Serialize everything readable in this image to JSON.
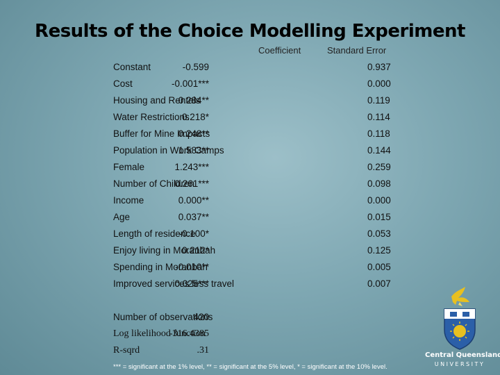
{
  "title": "Results of the Choice Modelling Experiment",
  "headers": {
    "coefficient": "Coefficient",
    "std_error": "Standard Error"
  },
  "rows": [
    {
      "label": "Constant",
      "coef": "-0.599",
      "se": "0.937"
    },
    {
      "label": "Cost",
      "coef": "-0.001***",
      "se": "0.000"
    },
    {
      "label": "Housing and Rentals",
      "coef": "0.284**",
      "se": "0.119"
    },
    {
      "label": "Water Restrictions",
      "coef": "0.218*",
      "se": "0.114"
    },
    {
      "label": "Buffer for Mine Impacts",
      "coef": "0.248**",
      "se": "0.118"
    },
    {
      "label": "Population in Work Camps",
      "coef": "1.583**",
      "se": "0.144"
    },
    {
      "label": "Female",
      "coef": "1.243***",
      "se": "0.259"
    },
    {
      "label": "Number of Children",
      "coef": "0.261***",
      "se": "0.098"
    },
    {
      "label": "Income",
      "coef": "0.000**",
      "se": "0.000"
    },
    {
      "label": "Age",
      "coef": "0.037**",
      "se": "0.015"
    },
    {
      "label": "Length of residence",
      "coef": "-0.100*",
      "se": "0.053"
    },
    {
      "label": "Enjoy living in Moranbah",
      "coef": "0.212*",
      "se": "0.125"
    },
    {
      "label": "Spending in Moranbah",
      "coef": "-0.010**",
      "se": "0.005"
    },
    {
      "label": "Improved services less travel",
      "coef": "0.025***",
      "se": "0.007"
    }
  ],
  "stats": [
    {
      "label": "Number of observations",
      "value": "420"
    },
    {
      "label": "Log likelihood function",
      "value": "-316.4385"
    },
    {
      "label": "R-sqrd",
      "value": ".31"
    }
  ],
  "footnote": "*** = significant at the 1% level, ** = significant at the 5% level, * = significant at the 10% level.",
  "logo": {
    "name_line1": "Central Queensland",
    "name_line2": "UNIVERSITY"
  },
  "colors": {
    "background": "#7ea7b2",
    "logo_gold": "#e8c020",
    "logo_blue": "#2b5fa8"
  }
}
